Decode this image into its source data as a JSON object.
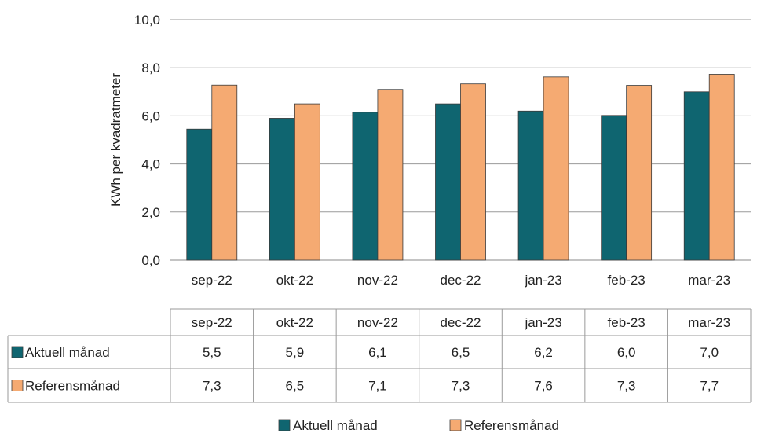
{
  "chart_data": {
    "type": "bar",
    "title": "",
    "xlabel": "",
    "ylabel": "KWh per kvadratmeter",
    "ylim": [
      0,
      10
    ],
    "yticks": [
      "0,0",
      "2,0",
      "4,0",
      "6,0",
      "8,0",
      "10,0"
    ],
    "grid": true,
    "categories": [
      "sep-22",
      "okt-22",
      "nov-22",
      "dec-22",
      "jan-23",
      "feb-23",
      "mar-23"
    ],
    "series": [
      {
        "name": "Aktuell månad",
        "color": "#0f6570",
        "values": [
          5.45,
          5.9,
          6.15,
          6.5,
          6.2,
          6.02,
          7.0
        ],
        "table_labels": [
          "5,5",
          "5,9",
          "6,1",
          "6,5",
          "6,2",
          "6,0",
          "7,0"
        ]
      },
      {
        "name": "Referensmånad",
        "color": "#f5aa72",
        "values": [
          7.28,
          6.5,
          7.1,
          7.33,
          7.62,
          7.27,
          7.73
        ],
        "table_labels": [
          "7,3",
          "6,5",
          "7,1",
          "7,3",
          "7,6",
          "7,3",
          "7,7"
        ]
      }
    ],
    "legend": {
      "placement": "bottom-center"
    },
    "data_table": true
  }
}
